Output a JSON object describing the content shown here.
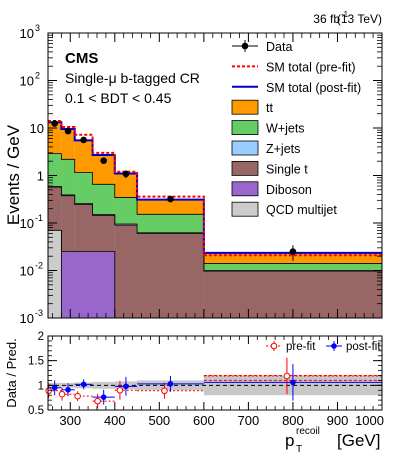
{
  "header": {
    "lumi": "36 fb",
    "lumi_sup": "-1",
    "energy": "(13 TeV)",
    "experiment": "CMS",
    "region": "Single-μ b-tagged CR",
    "cut": "0.1 < BDT < 0.45"
  },
  "chart_data": {
    "type": "area",
    "bin_edges": [
      250,
      280,
      310,
      350,
      400,
      450,
      600,
      1000
    ],
    "xlim": [
      250,
      1000
    ],
    "xticks": [
      300,
      400,
      500,
      600,
      700,
      800,
      900,
      1000
    ],
    "x_tick_labels": [
      "300",
      "400",
      "500",
      "600",
      "700",
      "800",
      "900",
      "1000"
    ],
    "xlabel": "p",
    "xlabel_sub": "T",
    "xlabel_sup": "recoil",
    "xlabel_unit": "[GeV]",
    "main": {
      "ylabel": "Events / GeV",
      "yscale": "log",
      "ylim": [
        0.001,
        1000
      ],
      "y_tick_labels": [
        {
          "base": "10",
          "exp": "-3"
        },
        {
          "base": "10",
          "exp": "-2"
        },
        {
          "base": "10",
          "exp": "-1"
        },
        {
          "base": "1",
          "exp": ""
        },
        {
          "base": "10",
          "exp": ""
        },
        {
          "base": "10",
          "exp": "2"
        },
        {
          "base": "10",
          "exp": "3"
        }
      ],
      "stack": [
        {
          "name": "QCD multijet",
          "color": "#cccccc",
          "values": [
            0.07,
            0.0001,
            0.0001,
            0.0001,
            0.0001,
            0.0001,
            0.0001
          ]
        },
        {
          "name": "Diboson",
          "color": "#9966cc",
          "values": [
            0.0001,
            0.025,
            0.025,
            0.025,
            0.0001,
            0.0001,
            0.0001
          ]
        },
        {
          "name": "Single t",
          "color": "#996666",
          "values": [
            0.5,
            0.35,
            0.22,
            0.12,
            0.09,
            0.06,
            0.0095
          ]
        },
        {
          "name": "Z+jets",
          "color": "#99ccff",
          "values": [
            0.02,
            0.015,
            0.01,
            0.007,
            0.005,
            0.002,
            0.0003
          ]
        },
        {
          "name": "W+jets",
          "color": "#66cc66",
          "values": [
            2.3,
            1.8,
            0.9,
            0.5,
            0.25,
            0.09,
            0.004
          ]
        },
        {
          "name": "tt",
          "color": "#ff9900",
          "values": [
            10.3,
            7.3,
            4.3,
            2.0,
            0.75,
            0.155,
            0.0095
          ]
        }
      ],
      "sm_prefit": {
        "name": "SM total (pre-fit)",
        "color": "#ff0000",
        "values": [
          14,
          10.5,
          7.2,
          3.0,
          1.2,
          0.36,
          0.021
        ]
      },
      "sm_postfit": {
        "name": "SM total (post-fit)",
        "color": "#0000cc",
        "values": [
          13.2,
          9.5,
          5.5,
          2.7,
          1.1,
          0.31,
          0.0235
        ]
      },
      "data": {
        "name": "Data",
        "x": [
          265,
          295,
          330,
          375,
          425,
          525,
          800
        ],
        "y": [
          12.5,
          8.6,
          5.6,
          2.05,
          1.08,
          0.32,
          0.025
        ],
        "err": [
          1.8,
          1.1,
          0.55,
          0.3,
          0.2,
          0.05,
          0.009
        ]
      }
    },
    "ratio": {
      "ylabel": "Data / Pred.",
      "ylim": [
        0.5,
        2
      ],
      "yticks": [
        0.5,
        1,
        1.5,
        2
      ],
      "y_tick_labels": [
        "0.5",
        "1",
        "1.5",
        "2"
      ],
      "prefit": {
        "name": "pre-fit",
        "color": "#ff0000",
        "values": [
          0.89,
          0.82,
          0.78,
          0.68,
          0.9,
          0.89,
          1.19
        ]
      },
      "postfit": {
        "name": "post-fit",
        "color": "#0000ff",
        "values": [
          0.95,
          0.91,
          1.02,
          0.76,
          0.98,
          1.03,
          1.06
        ]
      },
      "err": [
        0.15,
        0.13,
        0.1,
        0.15,
        0.19,
        0.16,
        0.37
      ],
      "band": [
        0.05,
        0.05,
        0.06,
        0.07,
        0.08,
        0.1,
        0.2
      ]
    }
  }
}
